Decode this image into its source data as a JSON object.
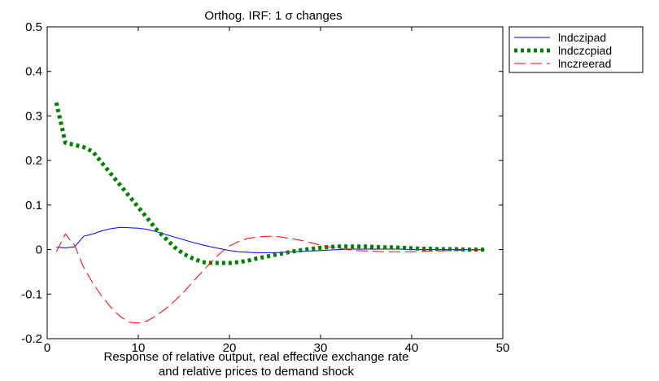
{
  "chart_data": {
    "type": "line",
    "title": "Orthog. IRF: 1 σ changes",
    "caption": [
      "Response of relative output, real effective exchange rate",
      "and relative prices to demand shock"
    ],
    "xlim": [
      0,
      50
    ],
    "ylim": [
      -0.2,
      0.5
    ],
    "xticks": [
      0,
      10,
      20,
      30,
      40,
      50
    ],
    "yticks": [
      -0.2,
      -0.1,
      0,
      0.1,
      0.2,
      0.3,
      0.4,
      0.5
    ],
    "xtick_labels": [
      "0",
      "10",
      "20",
      "30",
      "40",
      "50"
    ],
    "ytick_labels": [
      "-0.2",
      "-0.1",
      "0",
      "0.1",
      "0.2",
      "0.3",
      "0.4",
      "0.5"
    ],
    "grid": false,
    "legend_position": "outside-top-right",
    "series": [
      {
        "name": "lndczipad",
        "color": "#0000ff",
        "style": "solid",
        "x": [
          1,
          2,
          3,
          4,
          5,
          6,
          7,
          8,
          9,
          10,
          11,
          12,
          13,
          14,
          15,
          16,
          17,
          18,
          19,
          20,
          21,
          22,
          23,
          24,
          25,
          26,
          27,
          28,
          29,
          30,
          31,
          32,
          33,
          34,
          35,
          36,
          37,
          38,
          39,
          40,
          41,
          42,
          43,
          44,
          45,
          46,
          47,
          48
        ],
        "y": [
          0.005,
          0.004,
          0.006,
          0.03,
          0.035,
          0.042,
          0.047,
          0.05,
          0.049,
          0.048,
          0.045,
          0.04,
          0.034,
          0.028,
          0.022,
          0.016,
          0.011,
          0.006,
          0.002,
          -0.002,
          -0.005,
          -0.006,
          -0.007,
          -0.007,
          -0.007,
          -0.006,
          -0.005,
          -0.004,
          -0.003,
          -0.002,
          -0.001,
          0.0,
          0.001,
          0.001,
          0.001,
          0.001,
          0.001,
          0.001,
          0.001,
          0.0,
          0.0,
          0.0,
          0.0,
          0.0,
          0.0,
          0.0,
          0.0,
          0.0
        ]
      },
      {
        "name": "lndczcpiad",
        "color": "#008000",
        "style": "dotted",
        "x": [
          1,
          2,
          3,
          4,
          5,
          6,
          7,
          8,
          9,
          10,
          11,
          12,
          13,
          14,
          15,
          16,
          17,
          18,
          19,
          20,
          21,
          22,
          23,
          24,
          25,
          26,
          27,
          28,
          29,
          30,
          31,
          32,
          33,
          34,
          35,
          36,
          37,
          38,
          39,
          40,
          41,
          42,
          43,
          44,
          45,
          46,
          47,
          48
        ],
        "y": [
          0.33,
          0.24,
          0.235,
          0.23,
          0.22,
          0.195,
          0.17,
          0.145,
          0.12,
          0.095,
          0.07,
          0.045,
          0.025,
          0.005,
          -0.01,
          -0.02,
          -0.028,
          -0.03,
          -0.03,
          -0.03,
          -0.028,
          -0.025,
          -0.02,
          -0.016,
          -0.012,
          -0.008,
          -0.004,
          -0.001,
          0.002,
          0.004,
          0.006,
          0.007,
          0.007,
          0.007,
          0.007,
          0.006,
          0.005,
          0.005,
          0.004,
          0.003,
          0.002,
          0.002,
          0.001,
          0.001,
          0.001,
          0.0,
          0.0,
          0.0
        ]
      },
      {
        "name": "lnczreerad",
        "color": "#ff0000",
        "style": "dashed",
        "x": [
          1,
          2,
          3,
          4,
          5,
          6,
          7,
          8,
          9,
          10,
          11,
          12,
          13,
          14,
          15,
          16,
          17,
          18,
          19,
          20,
          21,
          22,
          23,
          24,
          25,
          26,
          27,
          28,
          29,
          30,
          31,
          32,
          33,
          34,
          35,
          36,
          37,
          38,
          39,
          40,
          41,
          42,
          43,
          44,
          45,
          46,
          47,
          48
        ],
        "y": [
          -0.005,
          0.035,
          0.01,
          -0.04,
          -0.075,
          -0.105,
          -0.13,
          -0.15,
          -0.163,
          -0.165,
          -0.16,
          -0.148,
          -0.133,
          -0.115,
          -0.095,
          -0.072,
          -0.05,
          -0.028,
          -0.008,
          0.008,
          0.018,
          0.025,
          0.028,
          0.03,
          0.03,
          0.027,
          0.024,
          0.02,
          0.015,
          0.01,
          0.006,
          0.003,
          0.0,
          -0.002,
          -0.003,
          -0.004,
          -0.005,
          -0.005,
          -0.005,
          -0.005,
          -0.004,
          -0.003,
          -0.003,
          -0.002,
          -0.002,
          -0.001,
          -0.001,
          0.0
        ]
      }
    ]
  }
}
